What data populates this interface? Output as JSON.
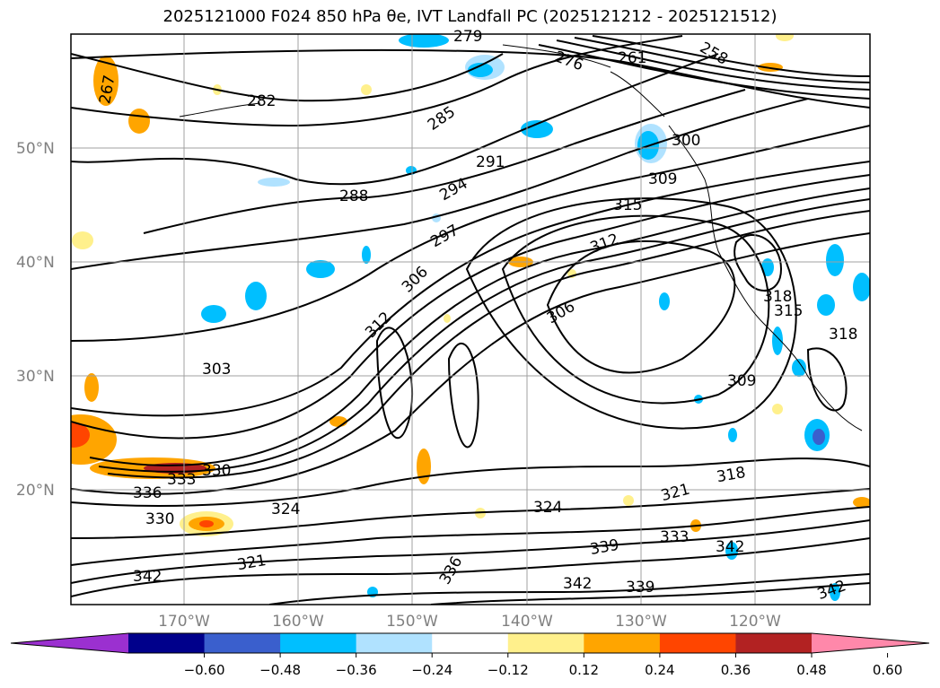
{
  "title": "2025121000 F024 850 hPa θe, IVT Landfall PC (2025121212 - 2025121512)",
  "lat_ticks": [
    "50°N",
    "40°N",
    "30°N",
    "20°N"
  ],
  "lon_ticks": [
    "170°W",
    "160°W",
    "150°W",
    "140°W",
    "130°W",
    "120°W"
  ],
  "colorbar": {
    "ticks": [
      "−0.60",
      "−0.48",
      "−0.36",
      "−0.24",
      "−0.12",
      "0.12",
      "0.24",
      "0.36",
      "0.48",
      "0.60"
    ],
    "colors": [
      "#9b30d0",
      "#00008b",
      "#3a5fcd",
      "#00bfff",
      "#b0e2ff",
      "#ffffff",
      "#fff08c",
      "#ffa500",
      "#ff4500",
      "#b22222",
      "#ff88aa"
    ]
  },
  "contour_labels": [
    "279",
    "258",
    "261",
    "282",
    "285",
    "291",
    "288",
    "294",
    "300",
    "309",
    "315",
    "297",
    "312",
    "306",
    "303",
    "312",
    "306",
    "318",
    "315",
    "318",
    "309",
    "333",
    "330",
    "336",
    "330",
    "324",
    "324",
    "321",
    "318",
    "333",
    "339",
    "342",
    "336",
    "342",
    "321",
    "342",
    "339",
    "342",
    "276",
    "267"
  ]
}
